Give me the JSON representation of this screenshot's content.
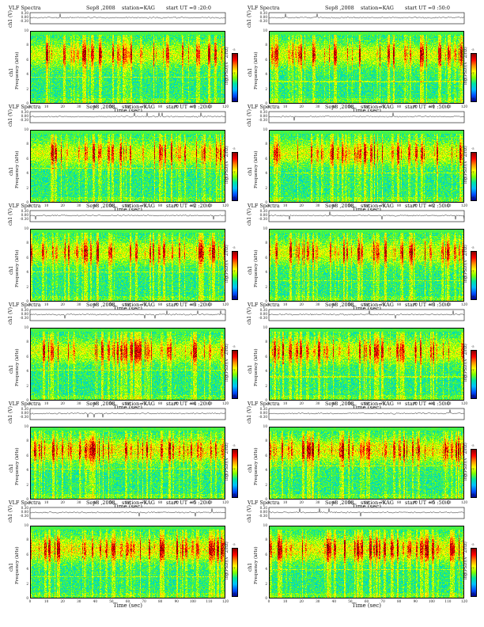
{
  "chart_data": {
    "type": "heatmap",
    "panel_title": "VLF Spectra",
    "date": "Sep8 ,2008",
    "station": "station=KAG",
    "ch1_ylabel": "ch1 (V)",
    "ch1_ticks": [
      "0.30",
      "0.00",
      "-0.30"
    ],
    "spec_ylabel_line1": "ch1",
    "spec_ylabel_line2": "Frequency (kHz)",
    "colorbar_label": "log(PSD)(V^2/Hz)",
    "colorbar_ticks": [
      "-5",
      "-7",
      "-9"
    ],
    "colorbar_colors": [
      "#8b0000",
      "#ff0000",
      "#ff8c00",
      "#ffff00",
      "#7fff00",
      "#00e5a0",
      "#00bfff",
      "#0050ff",
      "#00008b"
    ],
    "xlabel": "Time (sec)",
    "x_ticks": [
      "0",
      "10",
      "20",
      "30",
      "40",
      "50",
      "60",
      "70",
      "80",
      "90",
      "100",
      "110",
      "120"
    ],
    "x_range": [
      0,
      120
    ],
    "y_ticks": [
      "0",
      "2",
      "4",
      "6",
      "8",
      "10"
    ],
    "y_range": [
      0,
      10
    ],
    "panels": [
      {
        "start": "start  UT =0 :20:0"
      },
      {
        "start": "start  UT =0 :50:0"
      },
      {
        "start": "start  UT =1 :20:0"
      },
      {
        "start": "start  UT =1 :50:0"
      },
      {
        "start": "start  UT =2 :20:0"
      },
      {
        "start": "start  UT =2 :50:0"
      },
      {
        "start": "start  UT =3 :20:0"
      },
      {
        "start": "start  UT =3 :50:0"
      },
      {
        "start": "start  UT =4 :20:0"
      },
      {
        "start": "start  UT =4 :50:0"
      },
      {
        "start": "start  UT =5 :20:0"
      },
      {
        "start": "start  UT =5 :50:0"
      }
    ]
  }
}
